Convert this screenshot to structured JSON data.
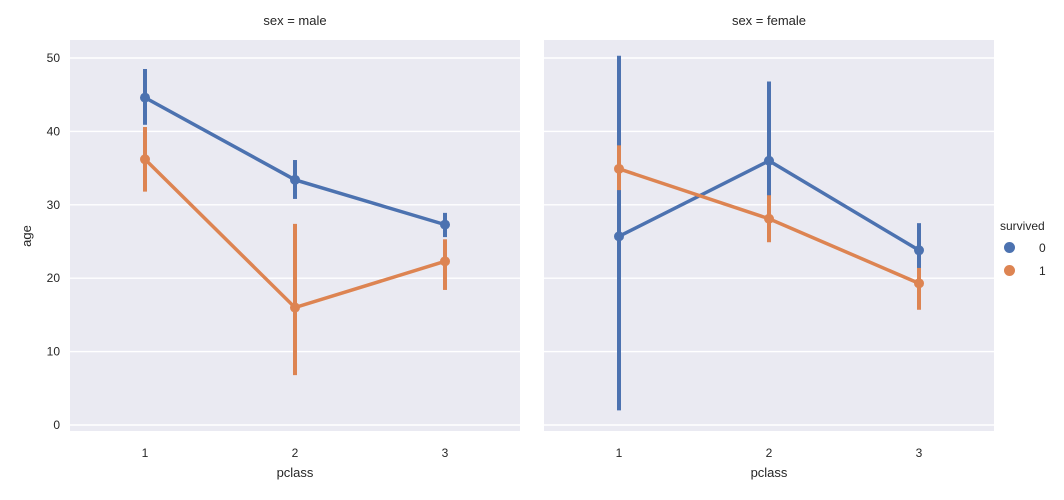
{
  "figure": {
    "panel_bg": "#eaeaf2",
    "grid_color": "#ffffff",
    "text_color": "#262626"
  },
  "chart_data": {
    "type": "line",
    "subtype": "point-plot-with-ci",
    "xlabel": "pclass",
    "ylabel": "age",
    "yticks": [
      0,
      10,
      20,
      30,
      40,
      50
    ],
    "ylim": [
      -0.8,
      52.5
    ],
    "grid": true,
    "legend": {
      "title": "survived",
      "position": "right-of-plot",
      "entries": [
        {
          "label": "0",
          "color": "#4c72b0"
        },
        {
          "label": "1",
          "color": "#dd8452"
        }
      ]
    },
    "facets": [
      {
        "title": "sex = male",
        "categories": [
          "1",
          "2",
          "3"
        ],
        "series": [
          {
            "name": "0",
            "color": "#4c72b0",
            "values": [
              44.6,
              33.4,
              27.3
            ],
            "ci": [
              [
                40.9,
                48.5
              ],
              [
                30.8,
                36.1
              ],
              [
                25.6,
                28.9
              ]
            ]
          },
          {
            "name": "1",
            "color": "#dd8452",
            "values": [
              36.2,
              16.0,
              22.3
            ],
            "ci": [
              [
                31.8,
                40.6
              ],
              [
                6.8,
                27.4
              ],
              [
                18.4,
                25.3
              ]
            ]
          }
        ]
      },
      {
        "title": "sex = female",
        "categories": [
          "1",
          "2",
          "3"
        ],
        "series": [
          {
            "name": "0",
            "color": "#4c72b0",
            "values": [
              25.7,
              36.0,
              23.8
            ],
            "ci": [
              [
                2.0,
                50.3
              ],
              [
                28.6,
                46.8
              ],
              [
                21.0,
                27.5
              ]
            ]
          },
          {
            "name": "1",
            "color": "#dd8452",
            "values": [
              34.9,
              28.1,
              19.3
            ],
            "ci": [
              [
                32.0,
                38.1
              ],
              [
                24.9,
                31.3
              ],
              [
                15.7,
                21.4
              ]
            ]
          }
        ]
      }
    ]
  }
}
